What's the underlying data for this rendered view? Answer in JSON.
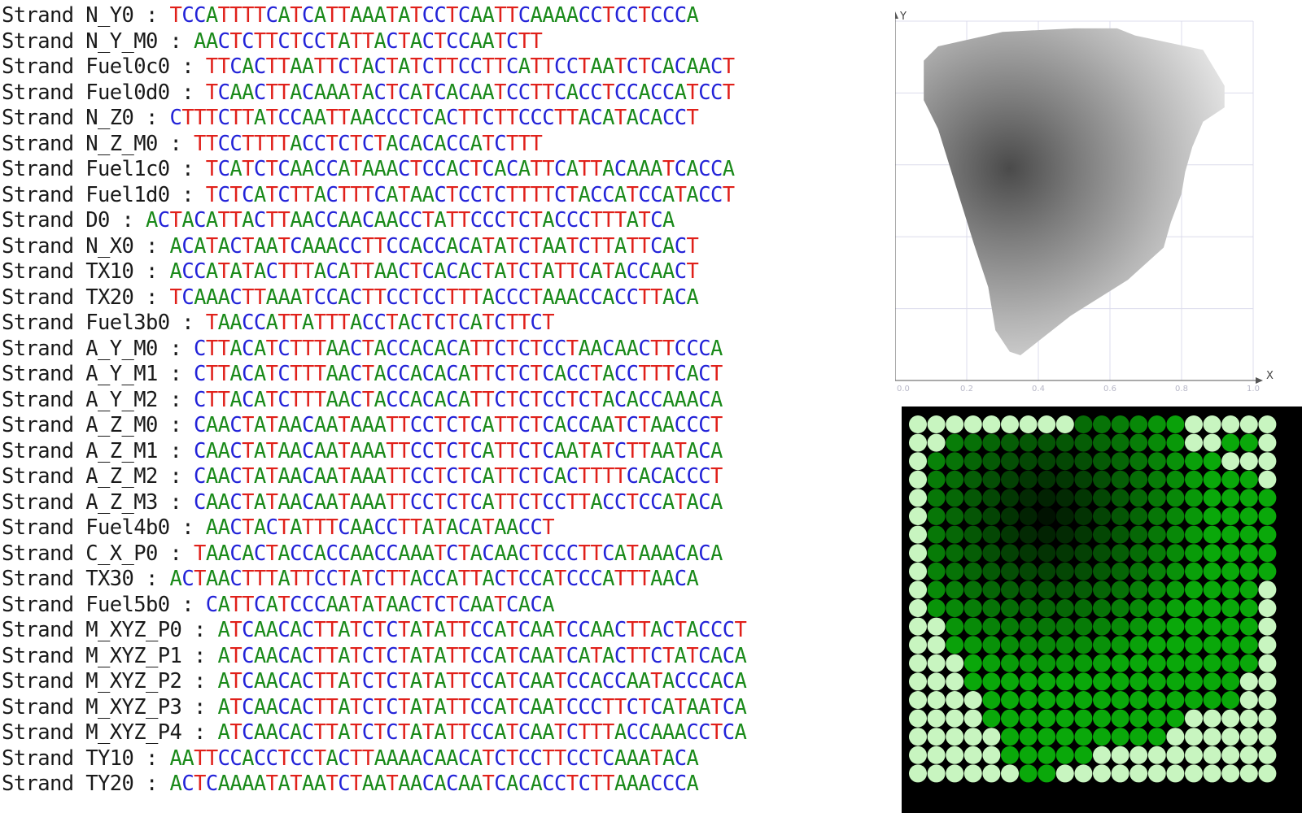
{
  "strands": [
    {
      "prefix": "Strand N_Y0 : ",
      "sequence": "TCCATTTTCATCATTAAATATCCTCAATTCAAAACCTCCTCCCA"
    },
    {
      "prefix": "Strand N_Y_M0 : ",
      "sequence": "AACTCTTCTCCTATTACTACTCCAATCTT"
    },
    {
      "prefix": "Strand Fuel0c0 : ",
      "sequence": "TTCACTTAATTCTACTATCTTCCTTCATTCCTAATCTCACAACT"
    },
    {
      "prefix": "Strand Fuel0d0 : ",
      "sequence": "TCAACTTACAAATACTCATCACAATCCTTCACCTCCACCATCCT"
    },
    {
      "prefix": "Strand N_Z0 : ",
      "sequence": "CTTTCTTATCCAATTAACCCTCACTTCTTCCCTTACATACACCT"
    },
    {
      "prefix": "Strand N_Z_M0 : ",
      "sequence": "TTCCTTTTACCTCTCTACACACCATCTTT"
    },
    {
      "prefix": "Strand Fuel1c0 : ",
      "sequence": "TCATCTCAACCATAAACTCCACTCACATTCATTACAAATCACCA"
    },
    {
      "prefix": "Strand Fuel1d0 : ",
      "sequence": "TCTCATCTTACTTTCATAACTCCTCTTTTCTACCATCCATACCT"
    },
    {
      "prefix": "Strand D0 : ",
      "sequence": "ACTACATTACTTAACCAACAACCTATTCCCTCTACCCTTTATCA"
    },
    {
      "prefix": "Strand N_X0 : ",
      "sequence": "ACATACTAATCAAACCTTCCACCACATATCTAATCTTATTCACT"
    },
    {
      "prefix": "Strand TX10 : ",
      "sequence": "ACCATATACTTTACATTAACTCACACTATCTATTCATACCAACT"
    },
    {
      "prefix": "Strand TX20 : ",
      "sequence": "TCAAACTTAAATCCACTTCCTCCTTTACCCTAAACCACCTTACA"
    },
    {
      "prefix": "Strand Fuel3b0 : ",
      "sequence": "TAACCATTATTTACCTACTCTCATCTTCT"
    },
    {
      "prefix": "Strand A_Y_M0 : ",
      "sequence": "CTTACATCTTTAACTACCACACATTCTCTCCTAACAACTTCCCA"
    },
    {
      "prefix": "Strand A_Y_M1 : ",
      "sequence": "CTTACATCTTTAACTACCACACATTCTCTCACCTACCTTTCACT"
    },
    {
      "prefix": "Strand A_Y_M2 : ",
      "sequence": "CTTACATCTTTAACTACCACACATTCTCTCCTCTACACCAAACA"
    },
    {
      "prefix": "Strand A_Z_M0 : ",
      "sequence": "CAACTATAACAATAAATTCCTCTCATTCTCACCAATCTAACCCT"
    },
    {
      "prefix": "Strand A_Z_M1 : ",
      "sequence": "CAACTATAACAATAAATTCCTCTCATTCTCAATATCTTAATACA"
    },
    {
      "prefix": "Strand A_Z_M2 : ",
      "sequence": "CAACTATAACAATAAATTCCTCTCATTCTCACTTTTCACACCCT"
    },
    {
      "prefix": "Strand A_Z_M3 : ",
      "sequence": "CAACTATAACAATAAATTCCTCTCATTCTCCTTACCTCCATACA"
    },
    {
      "prefix": "Strand Fuel4b0 : ",
      "sequence": "AACTACTATTTCAACCTTATACATAACCT"
    },
    {
      "prefix": "Strand C_X_P0 : ",
      "sequence": "TAACACTACCACCAACCAAATCTACAACTCCCTTCATAAACACA"
    },
    {
      "prefix": "Strand TX30 : ",
      "sequence": "ACTAACTTTATTCCTATCTTACCATTACTCCATCCCATTTAACA"
    },
    {
      "prefix": "Strand Fuel5b0 : ",
      "sequence": "CATTCATCCCAATATAACTCTCAATCACA"
    },
    {
      "prefix": "Strand M_XYZ_P0 : ",
      "sequence": "ATCAACACTTATCTCTATATTCCATCAATCCAACTTACTACCCT"
    },
    {
      "prefix": "Strand M_XYZ_P1 : ",
      "sequence": "ATCAACACTTATCTCTATATTCCATCAATCATACTTCTATCACA"
    },
    {
      "prefix": "Strand M_XYZ_P2 : ",
      "sequence": "ATCAACACTTATCTCTATATTCCATCAATCCACCAATACCCACA"
    },
    {
      "prefix": "Strand M_XYZ_P3 : ",
      "sequence": "ATCAACACTTATCTCTATATTCCATCAATCCCTTCTCATAATCA"
    },
    {
      "prefix": "Strand M_XYZ_P4 : ",
      "sequence": "ATCAACACTTATCTCTATATTCCATCAATCTTTACCAAACCTCA"
    },
    {
      "prefix": "Strand TY10 : ",
      "sequence": "AATTCCACCTCCTACTTAAAACAACATCTCCTTCCTCAAATACA"
    },
    {
      "prefix": "Strand TY20 : ",
      "sequence": "ACTCAAAATATAATCTAATAACACAATCACACCTCTTAAACCCA"
    }
  ],
  "base_colors": {
    "A": "#1a8a1a",
    "C": "#2323d8",
    "T": "#e0201a",
    "G": "#1a1a1a"
  },
  "plot": {
    "x_axis_label": "X",
    "y_axis_label": "Y",
    "x_ticks": [
      "0.0",
      "0.2",
      "0.4",
      "0.6",
      "0.8",
      "1.0"
    ],
    "y_ticks": [
      "0.0",
      "0.2",
      "0.4",
      "0.6",
      "0.8",
      "1.0"
    ],
    "xlim": [
      0,
      1
    ],
    "ylim": [
      0,
      1
    ],
    "grid": true,
    "shape_fill": "grayscale gradient",
    "outline_points": [
      [
        0.08,
        0.89
      ],
      [
        0.12,
        0.93
      ],
      [
        0.3,
        0.97
      ],
      [
        0.5,
        0.98
      ],
      [
        0.62,
        0.98
      ],
      [
        0.67,
        0.96
      ],
      [
        0.86,
        0.92
      ],
      [
        0.92,
        0.82
      ],
      [
        0.92,
        0.76
      ],
      [
        0.86,
        0.72
      ],
      [
        0.83,
        0.65
      ],
      [
        0.81,
        0.58
      ],
      [
        0.8,
        0.52
      ],
      [
        0.77,
        0.44
      ],
      [
        0.75,
        0.37
      ],
      [
        0.65,
        0.28
      ],
      [
        0.49,
        0.18
      ],
      [
        0.35,
        0.07
      ],
      [
        0.32,
        0.08
      ],
      [
        0.28,
        0.14
      ],
      [
        0.26,
        0.26
      ],
      [
        0.22,
        0.38
      ],
      [
        0.17,
        0.54
      ],
      [
        0.12,
        0.7
      ],
      [
        0.08,
        0.78
      ]
    ],
    "darkest_point": [
      0.32,
      0.59
    ]
  },
  "led_grid": {
    "cols": 20,
    "rows": 20,
    "background": "#000000",
    "bright_color": "#c8f5c0",
    "green_color": "#1aa01a",
    "dark_center": [
      5,
      7
    ]
  }
}
